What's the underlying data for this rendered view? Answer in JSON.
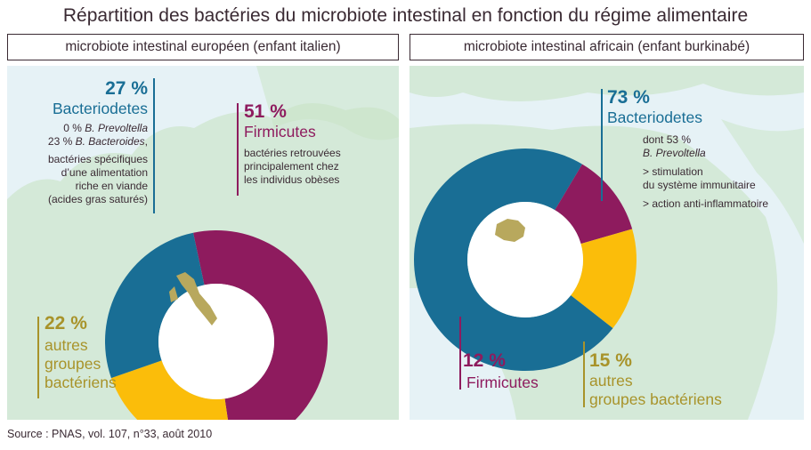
{
  "title": "Répartition des bactéries du microbiote intestinal en fonction du régime alimentaire",
  "source": "Source : PNAS, vol. 107, n°33, août 2010",
  "colors": {
    "bacteriodetes": "#196e95",
    "firmicutes": "#8e1b5e",
    "autres": "#fbbd0a",
    "map_sea": "#e6f2f6",
    "map_land": "#c8e3c4",
    "country": "#b8a85d"
  },
  "left": {
    "heading": "microbiote intestinal européen (enfant italien)",
    "country_icon": "italy-map-icon",
    "bacteriodetes": {
      "pct": "27 %",
      "name": "Bacteriodetes",
      "line1_pct": "0 % ",
      "line1_name": "B. Prevoltella",
      "line2_pct": "23 % ",
      "line2_name": "B. Bacteroides",
      "line2_end": ",",
      "notes": [
        "bactéries spécifiques",
        "d’une alimentation",
        "riche en viande",
        "(acides gras saturés)"
      ]
    },
    "firmicutes": {
      "pct": "51 %",
      "name": "Firmicutes",
      "notes": [
        "bactéries retrouvées",
        "principalement chez",
        "les individus obèses"
      ]
    },
    "autres": {
      "pct": "22 %",
      "name_lines": [
        "autres",
        "groupes",
        "bactériens"
      ]
    }
  },
  "right": {
    "heading": "microbiote intestinal africain (enfant burkinabé)",
    "country_icon": "burkina-faso-map-icon",
    "bacteriodetes": {
      "pct": "73 %",
      "name": "Bacteriodetes",
      "dont": "dont 53 %",
      "species": "B. Prevoltella",
      "notes": [
        "> stimulation",
        "du système immunitaire",
        "> action anti-inflammatoire"
      ]
    },
    "firmicutes": {
      "pct": "12 %",
      "name": "Firmicutes"
    },
    "autres": {
      "pct": "15 %",
      "name_lines": [
        "autres",
        "groupes bactériens"
      ]
    }
  },
  "chart_data": [
    {
      "type": "pie",
      "donut": true,
      "title": "microbiote intestinal européen (enfant italien)",
      "categories": [
        "Bacteriodetes",
        "Firmicutes",
        "autres groupes bactériens"
      ],
      "values": [
        27,
        51,
        22
      ],
      "colors": [
        "#196e95",
        "#8e1b5e",
        "#fbbd0a"
      ]
    },
    {
      "type": "pie",
      "donut": true,
      "title": "microbiote intestinal africain (enfant burkinabé)",
      "categories": [
        "Bacteriodetes",
        "Firmicutes",
        "autres groupes bactériens"
      ],
      "values": [
        73,
        12,
        15
      ],
      "colors": [
        "#196e95",
        "#8e1b5e",
        "#fbbd0a"
      ]
    }
  ]
}
